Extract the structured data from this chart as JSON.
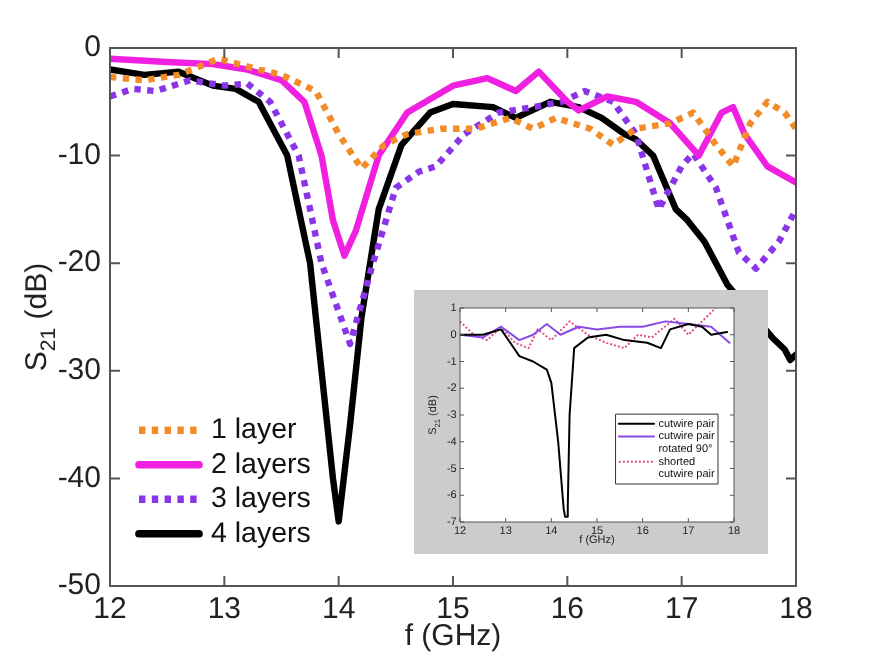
{
  "chart_data": [
    {
      "type": "line",
      "xlabel": "f (GHz)",
      "ylabel": "S$_{21}$ (dB)",
      "xlim": [
        12,
        18
      ],
      "ylim": [
        -50,
        0
      ],
      "xticks": [
        12,
        13,
        14,
        15,
        16,
        17,
        18
      ],
      "yticks": [
        -50,
        -40,
        -30,
        -20,
        -10,
        0
      ],
      "grid": false,
      "legend": "bottom left",
      "marker": "none",
      "series": [
        {
          "name": "1 layer",
          "color": "#f28c28",
          "line_style": "dotted",
          "x": [
            12,
            12.3,
            12.6,
            12.95,
            13.3,
            13.5,
            13.8,
            14,
            14.2,
            14.4,
            14.6,
            14.9,
            15.2,
            15.5,
            15.7,
            15.9,
            16.2,
            16.4,
            16.6,
            16.9,
            17.1,
            17.3,
            17.45,
            17.6,
            17.75,
            17.9,
            18
          ],
          "values": [
            -2.7,
            -3,
            -2.5,
            -1,
            -2,
            -2.5,
            -4,
            -8,
            -11.2,
            -9,
            -8,
            -7.5,
            -7.5,
            -6.5,
            -7.5,
            -6.5,
            -7.5,
            -9,
            -7.5,
            -7,
            -6,
            -9,
            -11,
            -7,
            -5,
            -6,
            -7.5
          ]
        },
        {
          "name": "2 layers",
          "color": "#f020e0",
          "line_style": "solid",
          "x": [
            12,
            12.5,
            12.9,
            13.2,
            13.5,
            13.7,
            13.85,
            13.95,
            14.05,
            14.15,
            14.35,
            14.6,
            15,
            15.3,
            15.55,
            15.75,
            16,
            16.1,
            16.35,
            16.6,
            16.9,
            17.15,
            17.35,
            17.45,
            17.55,
            17.75,
            18
          ],
          "values": [
            -1,
            -1.3,
            -1.5,
            -2,
            -3,
            -5,
            -10,
            -16,
            -19.3,
            -17,
            -10,
            -6,
            -3.5,
            -2.8,
            -4,
            -2.2,
            -5,
            -5.8,
            -4.5,
            -5,
            -7,
            -10,
            -6,
            -5.5,
            -8,
            -11,
            -12.5
          ]
        },
        {
          "name": "3 layers",
          "color": "#8a35e8",
          "line_style": "dotted",
          "x": [
            12,
            12.2,
            12.4,
            12.7,
            13,
            13.2,
            13.4,
            13.65,
            13.85,
            14.1,
            14.3,
            14.5,
            14.7,
            14.85,
            15.1,
            15.4,
            15.7,
            15.95,
            16.15,
            16.4,
            16.6,
            16.8,
            17,
            17.1,
            17.3,
            17.5,
            17.65,
            17.85,
            18
          ],
          "values": [
            -4.5,
            -3.8,
            -4,
            -3,
            -3.5,
            -3.3,
            -5,
            -10,
            -20,
            -27.5,
            -20,
            -13,
            -11.5,
            -11,
            -8,
            -6,
            -5.5,
            -5,
            -4,
            -5,
            -8,
            -15,
            -11,
            -9.8,
            -13,
            -19,
            -20.5,
            -18,
            -15
          ]
        },
        {
          "name": "4 layers",
          "color": "#000000",
          "line_style": "solid",
          "x": [
            12,
            12.3,
            12.6,
            12.9,
            13.1,
            13.3,
            13.55,
            13.75,
            13.85,
            13.95,
            14,
            14.1,
            14.2,
            14.35,
            14.55,
            14.8,
            15,
            15.35,
            15.55,
            15.85,
            16.1,
            16.3,
            16.5,
            16.6,
            16.75,
            16.95,
            17.05,
            17.2,
            17.4,
            17.5,
            17.6,
            17.7,
            17.8,
            17.9,
            17.95,
            18
          ],
          "values": [
            -2,
            -2.5,
            -2.2,
            -3.5,
            -3.8,
            -5,
            -10,
            -20,
            -30,
            -40,
            -44,
            -35,
            -25,
            -15,
            -9,
            -6,
            -5.2,
            -5.5,
            -6.5,
            -5,
            -5.5,
            -6.5,
            -8,
            -8.5,
            -10,
            -15,
            -16,
            -18,
            -22,
            null,
            null,
            null,
            -27,
            -28,
            -29,
            -28.5
          ]
        }
      ]
    },
    {
      "type": "line",
      "xlabel": "f (GHz)",
      "ylabel": "S$_{21}$ (dB)",
      "xlim": [
        12,
        18
      ],
      "ylim": [
        -7,
        1
      ],
      "xticks": [
        12,
        13,
        14,
        15,
        16,
        17,
        18
      ],
      "yticks": [
        -7,
        -6,
        -5,
        -4,
        -3,
        -2,
        -1,
        0,
        1
      ],
      "grid": false,
      "legend": "bottom right",
      "marker": "none",
      "series": [
        {
          "name": "cutwire pair",
          "color": "#000000",
          "line_style": "solid",
          "x": [
            12,
            12.5,
            12.9,
            13.1,
            13.3,
            13.6,
            13.9,
            14,
            14.15,
            14.27,
            14.3,
            14.33,
            14.36,
            14.4,
            14.5,
            14.8,
            15.2,
            15.6,
            16.1,
            16.4,
            16.6,
            17,
            17.3,
            17.5,
            17.85
          ],
          "values": [
            0,
            0,
            0.2,
            -0.3,
            -0.8,
            -1,
            -1.3,
            -1.8,
            -4,
            -6.5,
            -6.8,
            -6.8,
            -6.4,
            -3,
            -0.5,
            -0.1,
            0,
            -0.2,
            -0.3,
            -0.5,
            0.2,
            0.4,
            0.3,
            0,
            0.1
          ]
        },
        {
          "name": "cutwire pair rotated 90°",
          "color": "#8a4ae6",
          "line_style": "solid",
          "x": [
            12,
            12.5,
            12.9,
            13.3,
            13.6,
            13.9,
            14.2,
            14.6,
            15,
            15.5,
            16,
            16.5,
            17,
            17.5,
            17.9
          ],
          "values": [
            0,
            -0.1,
            0.3,
            -0.2,
            0,
            0.4,
            0,
            0.3,
            0.2,
            0.3,
            0.3,
            0.5,
            0.4,
            0.3,
            -0.3
          ]
        },
        {
          "name": "shorted cutwire pair",
          "color": "#e0508a",
          "line_style": "dotted",
          "x": [
            12,
            12.3,
            12.6,
            12.9,
            13.2,
            13.5,
            13.7,
            14,
            14.4,
            14.8,
            15.2,
            15.6,
            15.9,
            16.2,
            16.7,
            17,
            17.3,
            17.6
          ],
          "values": [
            0.5,
            0,
            -0.2,
            0.3,
            -0.3,
            -0.5,
            0.2,
            -0.2,
            0.5,
            0,
            -0.3,
            -0.5,
            0,
            -0.1,
            0.6,
            0,
            0.5,
            1
          ]
        }
      ]
    }
  ]
}
